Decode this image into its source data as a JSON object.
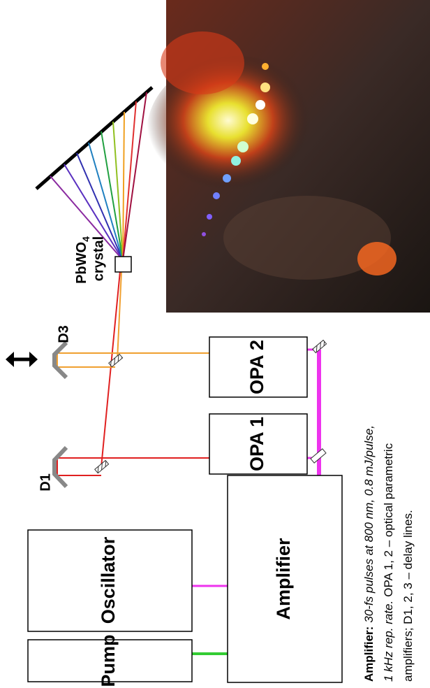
{
  "labels": {
    "oscillator": "Oscillator",
    "pump": "Pump",
    "amplifier": "Amplifier",
    "opa1": "OPA 1",
    "opa2": "OPA 2",
    "d1": "D1",
    "d3": "D3",
    "crystal_formula": "PbWO",
    "crystal_subscript": "4",
    "crystal": "crystal"
  },
  "caption": {
    "lines": [
      [
        {
          "text": "Amplifier:",
          "style": "bold"
        },
        {
          "text": "30-fs pulses at 800 nm, 0.8 mJ/pulse,",
          "style": "italic"
        }
      ],
      [
        {
          "text": "1 kHz rep. rate.",
          "style": "italic"
        },
        {
          "text": "OPA 1, 2 – optical parametric",
          "style": "normal"
        }
      ],
      [
        {
          "text": "amplifiers; D1, 2, 3 – delay lines.",
          "style": "normal"
        }
      ]
    ]
  }
}
